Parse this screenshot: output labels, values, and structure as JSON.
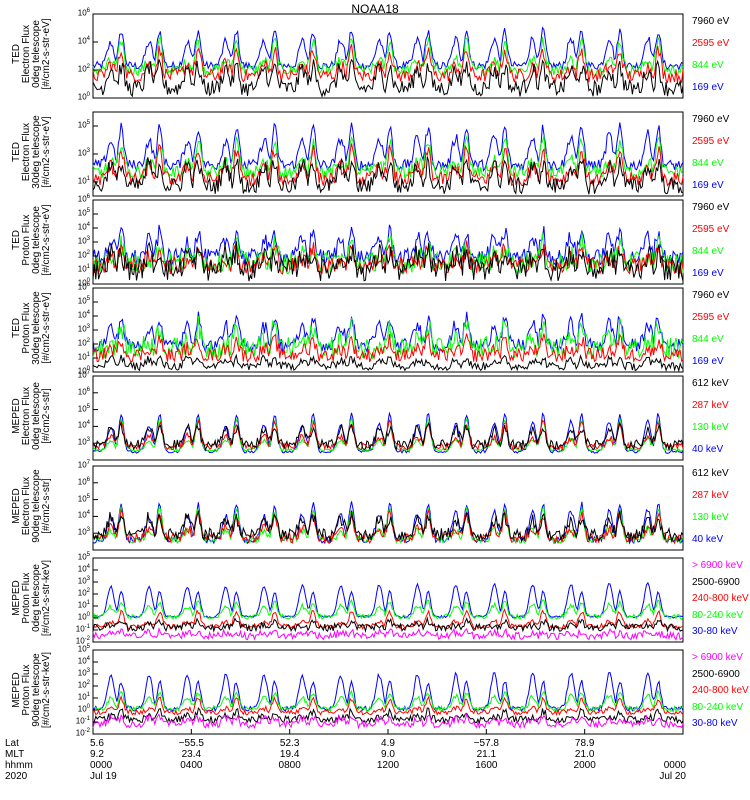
{
  "title": "NOAA18",
  "colors": {
    "black": "#000000",
    "red": "#ff0000",
    "green": "#00ff00",
    "blue": "#0000ff",
    "magenta": "#ff00ff"
  },
  "chart_data": [
    {
      "type": "line",
      "ylabel": [
        "TED",
        "Electron Flux",
        "0deg telescope",
        "[#/cm2-s-str-eV]"
      ],
      "yscale": "log",
      "ylim_exp": [
        0,
        6
      ],
      "yticks": [
        {
          "base": "10",
          "exp": "0"
        },
        {
          "base": "10",
          "exp": "2"
        },
        {
          "base": "10",
          "exp": "4"
        },
        {
          "base": "10",
          "exp": "6"
        }
      ],
      "series": [
        {
          "name": "7960 eV",
          "color": "#000000",
          "base": 0.7,
          "noise": 0.6,
          "peak": 2.2
        },
        {
          "name": "2595 eV",
          "color": "#ff0000",
          "base": 1.6,
          "noise": 0.5,
          "peak": 2.6
        },
        {
          "name": "844 eV",
          "color": "#00ff00",
          "base": 2.0,
          "noise": 0.4,
          "peak": 3.0
        },
        {
          "name": "169 eV",
          "color": "#0000ff",
          "base": 2.3,
          "noise": 0.3,
          "peak": 3.6
        }
      ]
    },
    {
      "type": "line",
      "ylabel": [
        "TED",
        "Electron Flux",
        "30deg telescope",
        "[#/cm2-s-str-eV]"
      ],
      "yscale": "log",
      "ylim_exp": [
        0,
        6
      ],
      "yticks": [
        {
          "base": "10",
          "exp": "1"
        },
        {
          "base": "10",
          "exp": "3"
        },
        {
          "base": "10",
          "exp": "5"
        }
      ],
      "series": [
        {
          "name": "7960 eV",
          "color": "#000000",
          "base": 0.7,
          "noise": 0.6,
          "peak": 2.4
        },
        {
          "name": "2595 eV",
          "color": "#ff0000",
          "base": 1.2,
          "noise": 0.5,
          "peak": 3.0
        },
        {
          "name": "844 eV",
          "color": "#00ff00",
          "base": 1.7,
          "noise": 0.5,
          "peak": 3.2
        },
        {
          "name": "169 eV",
          "color": "#0000ff",
          "base": 2.2,
          "noise": 0.4,
          "peak": 3.8
        }
      ]
    },
    {
      "type": "line",
      "ylabel": [
        "TED",
        "Proton Flux",
        "0deg telescope",
        "[#/cm2-s-str-eV]"
      ],
      "yscale": "log",
      "ylim_exp": [
        0,
        6
      ],
      "yticks": [
        {
          "base": "10",
          "exp": "0"
        },
        {
          "base": "10",
          "exp": "1"
        },
        {
          "base": "10",
          "exp": "2"
        },
        {
          "base": "10",
          "exp": "3"
        },
        {
          "base": "10",
          "exp": "4"
        },
        {
          "base": "10",
          "exp": "5"
        },
        {
          "base": "10",
          "exp": "6"
        }
      ],
      "series": [
        {
          "name": "7960 eV",
          "color": "#000000",
          "base": 1.0,
          "noise": 0.8,
          "peak": 1.8
        },
        {
          "name": "2595 eV",
          "color": "#ff0000",
          "base": 1.3,
          "noise": 0.6,
          "peak": 1.8
        },
        {
          "name": "844 eV",
          "color": "#00ff00",
          "base": 1.5,
          "noise": 0.8,
          "peak": 2.0
        },
        {
          "name": "169 eV",
          "color": "#0000ff",
          "base": 1.9,
          "noise": 0.6,
          "peak": 2.6
        }
      ]
    },
    {
      "type": "line",
      "ylabel": [
        "TED",
        "Proton Flux",
        "30deg telescope",
        "[#/cm2-s-str-eV]"
      ],
      "yscale": "log",
      "ylim_exp": [
        0,
        6
      ],
      "yticks": [
        {
          "base": "10",
          "exp": "0"
        },
        {
          "base": "10",
          "exp": "1"
        },
        {
          "base": "10",
          "exp": "2"
        },
        {
          "base": "10",
          "exp": "3"
        },
        {
          "base": "10",
          "exp": "4"
        },
        {
          "base": "10",
          "exp": "5"
        },
        {
          "base": "10",
          "exp": "6"
        }
      ],
      "series": [
        {
          "name": "7960 eV",
          "color": "#000000",
          "base": 0.4,
          "noise": 0.3,
          "peak": 0.8
        },
        {
          "name": "2595 eV",
          "color": "#ff0000",
          "base": 1.2,
          "noise": 0.5,
          "peak": 1.6
        },
        {
          "name": "844 eV",
          "color": "#00ff00",
          "base": 1.7,
          "noise": 0.8,
          "peak": 2.2
        },
        {
          "name": "169 eV",
          "color": "#0000ff",
          "base": 1.9,
          "noise": 0.5,
          "peak": 2.8
        }
      ]
    },
    {
      "type": "line",
      "ylabel": [
        "MEPED",
        "Electron Flux",
        "0deg telescope",
        "[#/cm2-s-str]"
      ],
      "yscale": "log",
      "ylim_exp": [
        2,
        7
      ],
      "yticks": [
        {
          "base": "10",
          "exp": "3"
        },
        {
          "base": "10",
          "exp": "4"
        },
        {
          "base": "10",
          "exp": "5"
        },
        {
          "base": "10",
          "exp": "6"
        },
        {
          "base": "10",
          "exp": "7"
        }
      ],
      "series": [
        {
          "name": "612 keV",
          "color": "#000000",
          "base": 2.9,
          "noise": 0.3,
          "peak": 1.5
        },
        {
          "name": "287 keV",
          "color": "#ff0000",
          "base": 2.8,
          "noise": 0.2,
          "peak": 2.0
        },
        {
          "name": "130 keV",
          "color": "#00ff00",
          "base": 2.6,
          "noise": 0.1,
          "peak": 2.6
        },
        {
          "name": "40 keV",
          "color": "#0000ff",
          "base": 2.5,
          "noise": 0.1,
          "peak": 3.2
        }
      ]
    },
    {
      "type": "line",
      "ylabel": [
        "MEPED",
        "Electron Flux",
        "90deg telescope",
        "[#/cm2-s-str]"
      ],
      "yscale": "log",
      "ylim_exp": [
        2,
        7
      ],
      "yticks": [
        {
          "base": "10",
          "exp": "3"
        },
        {
          "base": "10",
          "exp": "4"
        },
        {
          "base": "10",
          "exp": "5"
        },
        {
          "base": "10",
          "exp": "6"
        },
        {
          "base": "10",
          "exp": "7"
        }
      ],
      "series": [
        {
          "name": "612 keV",
          "color": "#000000",
          "base": 2.9,
          "noise": 0.4,
          "peak": 1.5
        },
        {
          "name": "287 keV",
          "color": "#ff0000",
          "base": 2.7,
          "noise": 0.3,
          "peak": 2.1
        },
        {
          "name": "130 keV",
          "color": "#00ff00",
          "base": 2.6,
          "noise": 0.2,
          "peak": 2.6
        },
        {
          "name": "40 keV",
          "color": "#0000ff",
          "base": 2.6,
          "noise": 0.2,
          "peak": 3.0
        }
      ]
    },
    {
      "type": "line",
      "ylabel": [
        "MEPED",
        "Proton Flux",
        "0deg telescope",
        "[#/cm2-s-str-keV]"
      ],
      "yscale": "log",
      "ylim_exp": [
        -2,
        5
      ],
      "yticks": [
        {
          "base": "10",
          "exp": "-2"
        },
        {
          "base": "10",
          "exp": "-1"
        },
        {
          "base": "10",
          "exp": "0"
        },
        {
          "base": "10",
          "exp": "1"
        },
        {
          "base": "10",
          "exp": "2"
        },
        {
          "base": "10",
          "exp": "3"
        },
        {
          "base": "10",
          "exp": "4"
        },
        {
          "base": "10",
          "exp": "5"
        }
      ],
      "series": [
        {
          "name": "> 6900 keV",
          "color": "#ff00ff",
          "base": -1.5,
          "noise": 0.3,
          "peak": 0.5
        },
        {
          "name": "2500-6900",
          "color": "#000000",
          "base": -0.8,
          "noise": 0.3,
          "peak": 0.8
        },
        {
          "name": "240-800 keV",
          "color": "#ff0000",
          "base": -0.7,
          "noise": 0.2,
          "peak": 1.8
        },
        {
          "name": "80-240 keV",
          "color": "#00ff00",
          "base": 0.1,
          "noise": 0.2,
          "peak": 1.8
        },
        {
          "name": "30-80 keV",
          "color": "#0000ff",
          "base": 0.1,
          "noise": 0.1,
          "peak": 3.0
        }
      ]
    },
    {
      "type": "line",
      "ylabel": [
        "MEPED",
        "Proton Flux",
        "90deg telescope",
        "[#/cm2-s-str-keV]"
      ],
      "yscale": "log",
      "ylim_exp": [
        -2,
        5
      ],
      "yticks": [
        {
          "base": "10",
          "exp": "-2"
        },
        {
          "base": "10",
          "exp": "-1"
        },
        {
          "base": "10",
          "exp": "0"
        },
        {
          "base": "10",
          "exp": "1"
        },
        {
          "base": "10",
          "exp": "2"
        },
        {
          "base": "10",
          "exp": "3"
        },
        {
          "base": "10",
          "exp": "4"
        },
        {
          "base": "10",
          "exp": "5"
        }
      ],
      "series": [
        {
          "name": "> 6900 keV",
          "color": "#ff00ff",
          "base": -1.2,
          "noise": 0.3,
          "peak": 0.8
        },
        {
          "name": "2500-6900",
          "color": "#000000",
          "base": -0.8,
          "noise": 0.3,
          "peak": 1.0
        },
        {
          "name": "240-800 keV",
          "color": "#ff0000",
          "base": -0.2,
          "noise": 0.2,
          "peak": 1.6
        },
        {
          "name": "80-240 keV",
          "color": "#00ff00",
          "base": 0.1,
          "noise": 0.2,
          "peak": 2.0
        },
        {
          "name": "30-80 keV",
          "color": "#0000ff",
          "base": 0.1,
          "noise": 0.2,
          "peak": 3.2
        }
      ]
    }
  ],
  "x_axis": {
    "row_labels": [
      "Lat",
      "MLT",
      "hhmm",
      "2020"
    ],
    "ticks": [
      {
        "lat": "5.6",
        "mlt": "9.2",
        "hhmm": "0000",
        "extra": "Jul 19"
      },
      {
        "lat": "−55.5",
        "mlt": "23.4",
        "hhmm": "0400",
        "extra": ""
      },
      {
        "lat": "52.3",
        "mlt": "19.4",
        "hhmm": "0800",
        "extra": ""
      },
      {
        "lat": "4.9",
        "mlt": "9.0",
        "hhmm": "1200",
        "extra": ""
      },
      {
        "lat": "−57.8",
        "mlt": "21.1",
        "hhmm": "1600",
        "extra": ""
      },
      {
        "lat": "78.9",
        "mlt": "21.0",
        "hhmm": "2000",
        "extra": ""
      },
      {
        "lat": "",
        "mlt": "",
        "hhmm": "0000",
        "extra": "Jul 20"
      }
    ],
    "orbit_peaks": [
      0.03,
      0.095,
      0.16,
      0.225,
      0.29,
      0.355,
      0.42,
      0.485,
      0.55,
      0.615,
      0.68,
      0.745,
      0.81,
      0.875,
      0.94
    ]
  }
}
